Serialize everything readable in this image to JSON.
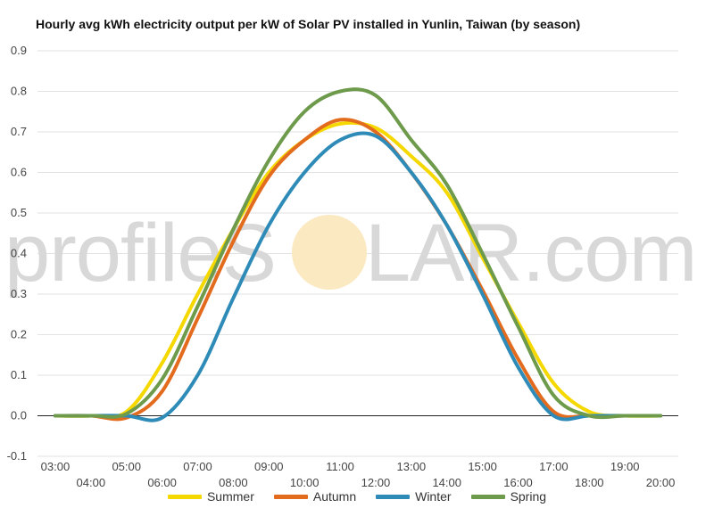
{
  "chart_data": {
    "type": "line",
    "title": "Hourly avg kWh electricity output per kW of Solar PV installed in Yunlin, Taiwan (by season)",
    "xlabel": "",
    "ylabel": "",
    "ylim": [
      -0.1,
      0.9
    ],
    "yticks": [
      "-0.1",
      "0.0",
      "0.1",
      "0.2",
      "0.3",
      "0.4",
      "0.5",
      "0.6",
      "0.7",
      "0.8",
      "0.9"
    ],
    "x_hours": [
      3,
      4,
      5,
      6,
      7,
      8,
      9,
      10,
      11,
      12,
      13,
      14,
      15,
      16,
      17,
      18,
      19,
      20
    ],
    "x_tick_labels": [
      "03:00",
      "04:00",
      "05:00",
      "06:00",
      "07:00",
      "08:00",
      "09:00",
      "10:00",
      "11:00",
      "12:00",
      "13:00",
      "14:00",
      "15:00",
      "16:00",
      "17:00",
      "18:00",
      "19:00",
      "20:00"
    ],
    "grid": true,
    "legend_position": "bottom",
    "watermark": {
      "left": "profileS",
      "right": "LAR.com",
      "sun_color": "#fbe9c2"
    },
    "series": [
      {
        "name": "Summer",
        "color": "#f5d800",
        "values": [
          0.0,
          0.0,
          0.01,
          0.13,
          0.3,
          0.46,
          0.6,
          0.68,
          0.72,
          0.71,
          0.64,
          0.55,
          0.39,
          0.23,
          0.08,
          0.01,
          0.0,
          0.0
        ]
      },
      {
        "name": "Autumn",
        "color": "#e36b1e",
        "values": [
          0.0,
          0.0,
          -0.005,
          0.06,
          0.24,
          0.43,
          0.59,
          0.68,
          0.73,
          0.7,
          0.6,
          0.47,
          0.31,
          0.14,
          0.01,
          0.0,
          0.0,
          0.0
        ]
      },
      {
        "name": "Winter",
        "color": "#2e8bb8",
        "values": [
          0.0,
          0.0,
          0.0,
          -0.005,
          0.1,
          0.29,
          0.47,
          0.6,
          0.68,
          0.69,
          0.6,
          0.47,
          0.3,
          0.12,
          0.0,
          0.0,
          0.0,
          0.0
        ]
      },
      {
        "name": "Spring",
        "color": "#6e9a4c",
        "values": [
          0.0,
          0.0,
          0.005,
          0.09,
          0.27,
          0.46,
          0.63,
          0.75,
          0.8,
          0.79,
          0.68,
          0.57,
          0.4,
          0.22,
          0.05,
          0.0,
          0.0,
          0.0
        ]
      }
    ]
  }
}
